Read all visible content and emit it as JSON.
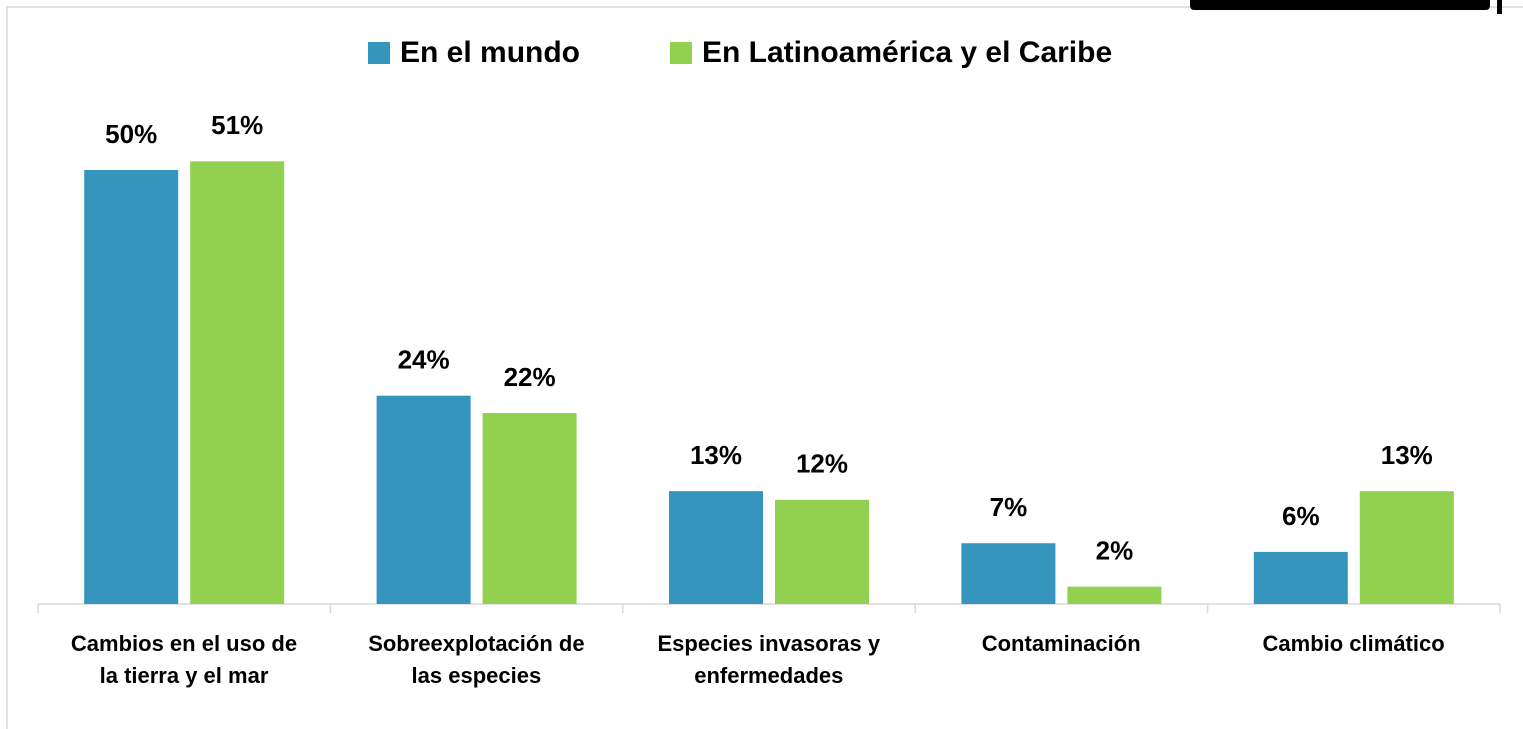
{
  "chart_data": {
    "type": "bar",
    "categories": [
      "Cambios en el uso de\nla tierra y el mar",
      "Sobreexplotación de\nlas especies",
      "Especies invasoras y\nenfermedades",
      "Contaminación",
      "Cambio climático"
    ],
    "series": [
      {
        "name": "En el mundo",
        "color": "#3595bd",
        "values": [
          50,
          24,
          13,
          7,
          6
        ],
        "value_labels": [
          "50%",
          "24%",
          "13%",
          "7%",
          "6%"
        ]
      },
      {
        "name": "En Latinoamérica y el Caribe",
        "color": "#92d050",
        "values": [
          51,
          22,
          12,
          2,
          13
        ],
        "value_labels": [
          "51%",
          "22%",
          "12%",
          "2%",
          "13%"
        ]
      }
    ],
    "legend": "top"
  }
}
